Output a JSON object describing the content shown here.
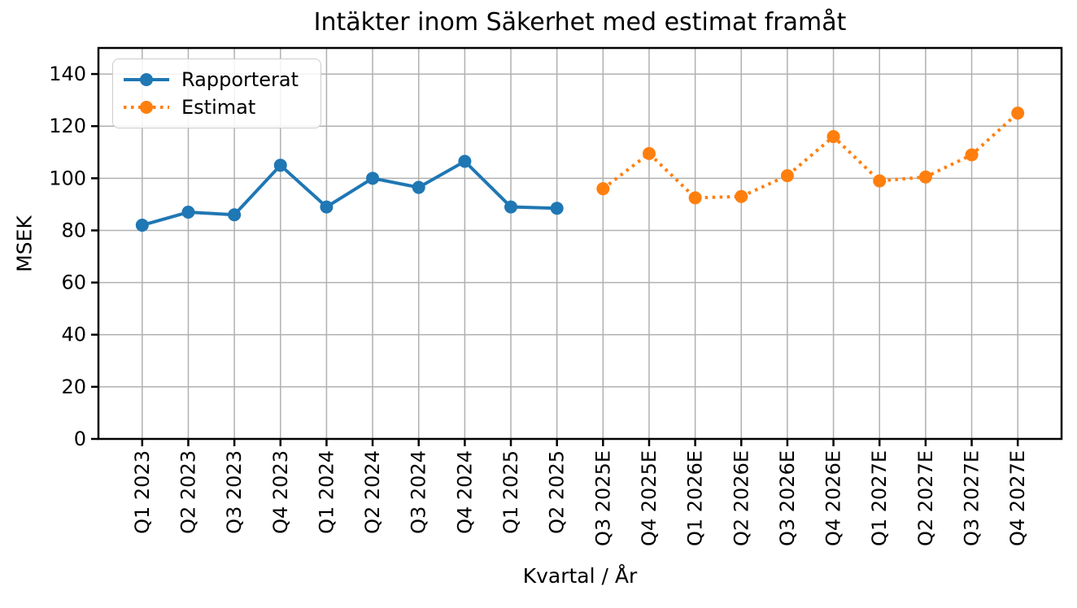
{
  "chart_data": {
    "type": "line",
    "title": "Intäkter inom Säkerhet med estimat framåt",
    "xlabel": "Kvartal / År",
    "ylabel": "MSEK",
    "ylim": [
      0,
      150
    ],
    "yticks": [
      0,
      20,
      40,
      60,
      80,
      100,
      120,
      140
    ],
    "grid": true,
    "legend_position": "upper-left",
    "categories": [
      "Q1 2023",
      "Q2 2023",
      "Q3 2023",
      "Q4 2023",
      "Q1 2024",
      "Q2 2024",
      "Q3 2024",
      "Q4 2024",
      "Q1 2025",
      "Q2 2025",
      "Q3 2025E",
      "Q4 2025E",
      "Q1 2026E",
      "Q2 2026E",
      "Q3 2026E",
      "Q4 2026E",
      "Q1 2027E",
      "Q2 2027E",
      "Q3 2027E",
      "Q4 2027E"
    ],
    "series": [
      {
        "name": "Rapporterat",
        "color": "#1f77b4",
        "line_style": "solid",
        "marker": "circle",
        "values": [
          82,
          87,
          86,
          105,
          89,
          100,
          96.5,
          106.5,
          89,
          88.5,
          null,
          null,
          null,
          null,
          null,
          null,
          null,
          null,
          null,
          null
        ]
      },
      {
        "name": "Estimat",
        "color": "#ff7f0e",
        "line_style": "dotted",
        "marker": "circle",
        "values": [
          null,
          null,
          null,
          null,
          null,
          null,
          null,
          null,
          null,
          null,
          96,
          109.5,
          92.5,
          93,
          101,
          116,
          99,
          100.5,
          109,
          125
        ]
      }
    ]
  },
  "colors": {
    "grid": "#b0b0b0",
    "axis": "#000000",
    "text": "#000000",
    "legend_border": "#cccccc"
  }
}
